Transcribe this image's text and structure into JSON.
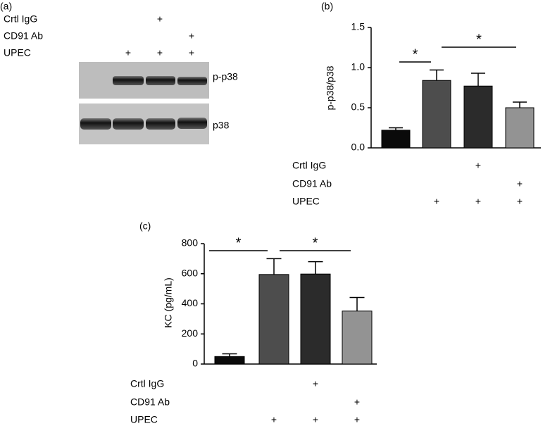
{
  "blot": {
    "panel_label": "(a)",
    "conditions": [
      {
        "label": "Crtl IgG",
        "marks": [
          null,
          null,
          "+",
          null
        ]
      },
      {
        "label": "CD91 Ab",
        "marks": [
          null,
          null,
          null,
          "+"
        ]
      },
      {
        "label": "UPEC",
        "marks": [
          null,
          "+",
          "+",
          "+"
        ]
      }
    ],
    "bands": [
      "p-p38",
      "p38"
    ]
  },
  "chart_data": [
    {
      "type": "bar",
      "panel_label": "(b)",
      "ylabel": "p-p38/p38",
      "values": [
        0.22,
        0.84,
        0.77,
        0.5
      ],
      "errors": [
        0.03,
        0.13,
        0.16,
        0.07
      ],
      "colors": [
        "#0a0a0a",
        "#4d4d4d",
        "#2b2b2b",
        "#939393"
      ],
      "ylim": [
        0,
        1.5
      ],
      "yticks": [
        {
          "value": 0,
          "label": "0.0"
        },
        0.5,
        {
          "value": 1,
          "label": "1.0"
        },
        1.5
      ],
      "annotations": [
        "*",
        "*"
      ],
      "conditions": [
        {
          "label": "Crtl IgG",
          "marks": [
            null,
            null,
            "+",
            null
          ]
        },
        {
          "label": "CD91 Ab",
          "marks": [
            null,
            null,
            null,
            "+"
          ]
        },
        {
          "label": "UPEC",
          "marks": [
            null,
            "+",
            "+",
            "+"
          ]
        }
      ]
    },
    {
      "type": "bar",
      "panel_label": "(c)",
      "ylabel": "KC (pg/mL)",
      "values": [
        50,
        595,
        598,
        352
      ],
      "errors": [
        18,
        105,
        82,
        90
      ],
      "colors": [
        "#0a0a0a",
        "#4d4d4d",
        "#2b2b2b",
        "#939393"
      ],
      "ylim": [
        0,
        800
      ],
      "yticks": [
        0,
        200,
        400,
        600,
        800
      ],
      "annotations": [
        "*",
        "*"
      ],
      "conditions": [
        {
          "label": "Crtl IgG",
          "marks": [
            null,
            null,
            "+",
            null
          ]
        },
        {
          "label": "CD91 Ab",
          "marks": [
            null,
            null,
            null,
            "+"
          ]
        },
        {
          "label": "UPEC",
          "marks": [
            null,
            "+",
            "+",
            "+"
          ]
        }
      ]
    }
  ]
}
